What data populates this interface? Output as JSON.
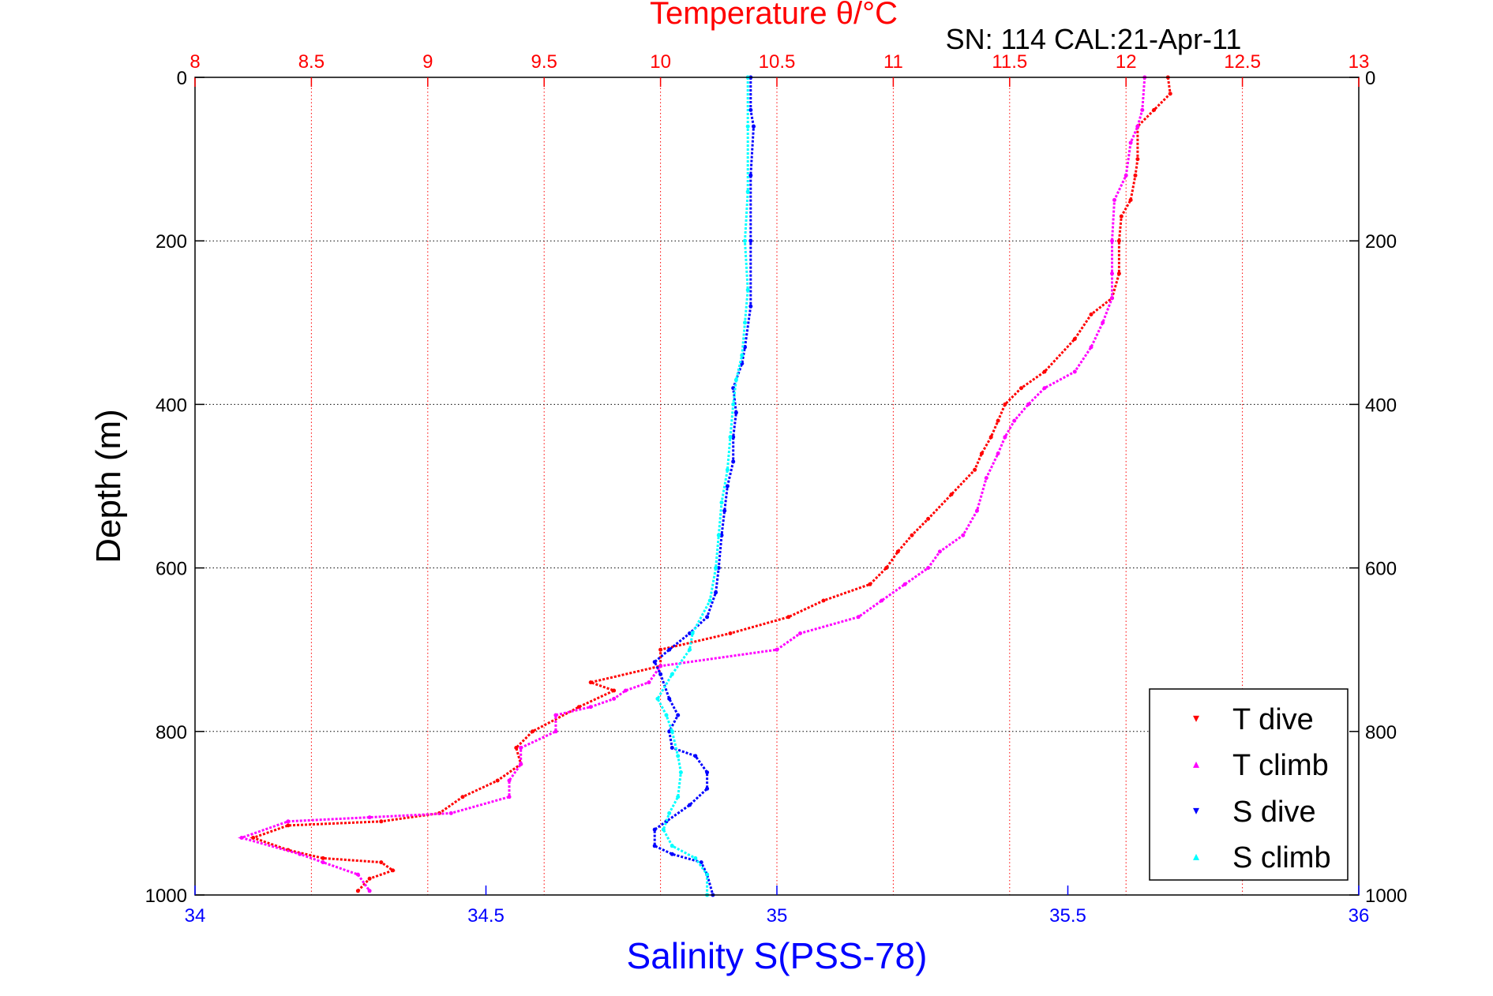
{
  "chart_data": {
    "type": "scatter",
    "title": "Temperature θ/°C",
    "subtitle": "SN: 114  CAL:21-Apr-11",
    "ylabel": "Depth (m)",
    "xlabel_bottom": "Salinity S(PSS-78)",
    "y_axis": {
      "ticks": [
        0,
        200,
        400,
        600,
        800,
        1000
      ],
      "range": [
        0,
        1000
      ],
      "reversed": true
    },
    "x_axis_top": {
      "quantity": "Temperature",
      "color": "#ff0000",
      "ticks": [
        "8",
        "8.5",
        "9",
        "9.5",
        "10",
        "10.5",
        "11",
        "11.5",
        "12",
        "12.5",
        "13"
      ],
      "range": [
        8,
        13
      ]
    },
    "x_axis_bottom": {
      "quantity": "Salinity",
      "color": "#0000ff",
      "ticks": [
        "34",
        "34.5",
        "35",
        "35.5",
        "36"
      ],
      "range": [
        34,
        36
      ]
    },
    "grid": true,
    "grid_colors": {
      "temperature_vertical": "#ff0000",
      "depth_horizontal": "#000000"
    },
    "legend": {
      "position": "bottom-right",
      "entries": [
        "T dive",
        "T climb",
        "S dive",
        "S climb"
      ]
    },
    "series": [
      {
        "name": "T dive",
        "axis": "temperature",
        "color": "#ff0000",
        "points": [
          [
            12.18,
            0
          ],
          [
            12.19,
            20
          ],
          [
            12.12,
            40
          ],
          [
            12.05,
            60
          ],
          [
            12.05,
            100
          ],
          [
            12.04,
            120
          ],
          [
            12.02,
            150
          ],
          [
            11.98,
            170
          ],
          [
            11.97,
            200
          ],
          [
            11.97,
            240
          ],
          [
            11.94,
            270
          ],
          [
            11.85,
            290
          ],
          [
            11.78,
            320
          ],
          [
            11.65,
            360
          ],
          [
            11.55,
            380
          ],
          [
            11.48,
            400
          ],
          [
            11.45,
            420
          ],
          [
            11.42,
            440
          ],
          [
            11.38,
            460
          ],
          [
            11.35,
            480
          ],
          [
            11.25,
            510
          ],
          [
            11.15,
            540
          ],
          [
            11.08,
            560
          ],
          [
            11.02,
            580
          ],
          [
            10.97,
            600
          ],
          [
            10.9,
            620
          ],
          [
            10.7,
            640
          ],
          [
            10.55,
            660
          ],
          [
            10.3,
            680
          ],
          [
            10.0,
            700
          ],
          [
            10.0,
            720
          ],
          [
            9.7,
            740
          ],
          [
            9.8,
            750
          ],
          [
            9.65,
            770
          ],
          [
            9.45,
            800
          ],
          [
            9.38,
            820
          ],
          [
            9.4,
            840
          ],
          [
            9.3,
            860
          ],
          [
            9.15,
            880
          ],
          [
            9.05,
            900
          ],
          [
            8.8,
            910
          ],
          [
            8.4,
            915
          ],
          [
            8.25,
            930
          ],
          [
            8.4,
            945
          ],
          [
            8.55,
            955
          ],
          [
            8.8,
            960
          ],
          [
            8.85,
            970
          ],
          [
            8.75,
            980
          ],
          [
            8.7,
            995
          ]
        ]
      },
      {
        "name": "T climb",
        "axis": "temperature",
        "color": "#ff00ff",
        "points": [
          [
            12.08,
            0
          ],
          [
            12.07,
            40
          ],
          [
            12.05,
            60
          ],
          [
            12.02,
            80
          ],
          [
            12.0,
            120
          ],
          [
            11.95,
            150
          ],
          [
            11.94,
            200
          ],
          [
            11.94,
            240
          ],
          [
            11.94,
            270
          ],
          [
            11.9,
            300
          ],
          [
            11.85,
            330
          ],
          [
            11.78,
            360
          ],
          [
            11.65,
            380
          ],
          [
            11.58,
            400
          ],
          [
            11.52,
            420
          ],
          [
            11.48,
            440
          ],
          [
            11.45,
            460
          ],
          [
            11.4,
            490
          ],
          [
            11.36,
            530
          ],
          [
            11.3,
            560
          ],
          [
            11.2,
            580
          ],
          [
            11.15,
            600
          ],
          [
            11.05,
            620
          ],
          [
            10.95,
            640
          ],
          [
            10.85,
            660
          ],
          [
            10.6,
            680
          ],
          [
            10.5,
            700
          ],
          [
            10.0,
            720
          ],
          [
            9.95,
            740
          ],
          [
            9.85,
            750
          ],
          [
            9.8,
            760
          ],
          [
            9.7,
            770
          ],
          [
            9.55,
            780
          ],
          [
            9.55,
            800
          ],
          [
            9.4,
            820
          ],
          [
            9.4,
            840
          ],
          [
            9.35,
            860
          ],
          [
            9.35,
            880
          ],
          [
            9.1,
            900
          ],
          [
            8.75,
            905
          ],
          [
            8.4,
            910
          ],
          [
            8.2,
            930
          ],
          [
            8.45,
            950
          ],
          [
            8.55,
            960
          ],
          [
            8.7,
            975
          ],
          [
            8.75,
            995
          ]
        ]
      },
      {
        "name": "S dive",
        "axis": "salinity",
        "color": "#0000ff",
        "points": [
          [
            34.955,
            0
          ],
          [
            34.955,
            40
          ],
          [
            34.96,
            60
          ],
          [
            34.955,
            120
          ],
          [
            34.955,
            200
          ],
          [
            34.955,
            280
          ],
          [
            34.945,
            330
          ],
          [
            34.94,
            350
          ],
          [
            34.925,
            380
          ],
          [
            34.93,
            410
          ],
          [
            34.925,
            440
          ],
          [
            34.925,
            470
          ],
          [
            34.915,
            500
          ],
          [
            34.91,
            530
          ],
          [
            34.905,
            560
          ],
          [
            34.9,
            600
          ],
          [
            34.895,
            630
          ],
          [
            34.88,
            660
          ],
          [
            34.85,
            680
          ],
          [
            34.815,
            700
          ],
          [
            34.79,
            715
          ],
          [
            34.8,
            730
          ],
          [
            34.815,
            760
          ],
          [
            34.83,
            780
          ],
          [
            34.815,
            800
          ],
          [
            34.82,
            820
          ],
          [
            34.86,
            830
          ],
          [
            34.88,
            850
          ],
          [
            34.88,
            870
          ],
          [
            34.85,
            890
          ],
          [
            34.81,
            910
          ],
          [
            34.79,
            920
          ],
          [
            34.79,
            940
          ],
          [
            34.82,
            950
          ],
          [
            34.87,
            960
          ],
          [
            34.88,
            975
          ],
          [
            34.89,
            1000
          ]
        ]
      },
      {
        "name": "S climb",
        "axis": "salinity",
        "color": "#00ffff",
        "points": [
          [
            34.95,
            0
          ],
          [
            34.95,
            60
          ],
          [
            34.95,
            140
          ],
          [
            34.945,
            200
          ],
          [
            34.95,
            260
          ],
          [
            34.945,
            300
          ],
          [
            34.94,
            340
          ],
          [
            34.93,
            370
          ],
          [
            34.925,
            400
          ],
          [
            34.92,
            440
          ],
          [
            34.915,
            480
          ],
          [
            34.905,
            520
          ],
          [
            34.9,
            560
          ],
          [
            34.895,
            600
          ],
          [
            34.885,
            640
          ],
          [
            34.855,
            680
          ],
          [
            34.85,
            700
          ],
          [
            34.82,
            730
          ],
          [
            34.795,
            760
          ],
          [
            34.81,
            780
          ],
          [
            34.82,
            800
          ],
          [
            34.83,
            830
          ],
          [
            34.835,
            850
          ],
          [
            34.83,
            880
          ],
          [
            34.815,
            900
          ],
          [
            34.805,
            920
          ],
          [
            34.82,
            940
          ],
          [
            34.86,
            955
          ],
          [
            34.88,
            975
          ],
          [
            34.88,
            1000
          ]
        ]
      }
    ]
  }
}
